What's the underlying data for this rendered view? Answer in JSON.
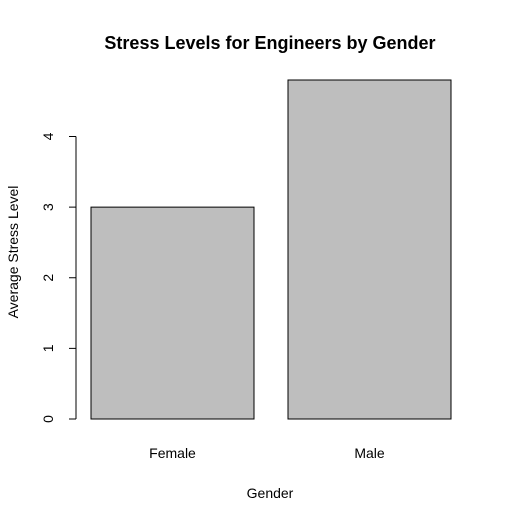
{
  "chart_data": {
    "type": "bar",
    "title": "Stress Levels for Engineers by Gender",
    "xlabel": "Gender",
    "ylabel": "Average Stress Level",
    "categories": [
      "Female",
      "Male"
    ],
    "values": [
      3.0,
      4.8
    ],
    "yticks": [
      0,
      1,
      2,
      3,
      4
    ],
    "ylim": [
      0,
      4.8
    ],
    "bar_color": "#bebebe",
    "grid": false,
    "legend": "none"
  }
}
